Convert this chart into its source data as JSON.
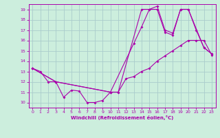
{
  "background_color": "#cceedd",
  "grid_color": "#aacccc",
  "line_color": "#aa00aa",
  "xlim": [
    -0.5,
    23.5
  ],
  "ylim": [
    9.5,
    19.5
  ],
  "xlabel": "Windchill (Refroidissement éolien,°C)",
  "xticks": [
    0,
    1,
    2,
    3,
    4,
    5,
    6,
    7,
    8,
    9,
    10,
    11,
    12,
    13,
    14,
    15,
    16,
    17,
    18,
    19,
    20,
    21,
    22,
    23
  ],
  "yticks": [
    10,
    11,
    12,
    13,
    14,
    15,
    16,
    17,
    18,
    19
  ],
  "line1_x": [
    0,
    1,
    2,
    3,
    10,
    11,
    14,
    15,
    16,
    17,
    18,
    19,
    20,
    22,
    23
  ],
  "line1_y": [
    13.3,
    13.0,
    12.0,
    12.0,
    11.0,
    11.0,
    19.0,
    19.0,
    19.3,
    17.0,
    16.7,
    19.0,
    19.0,
    15.3,
    14.7
  ],
  "line2_x": [
    0,
    3,
    4,
    5,
    6,
    7,
    8,
    9,
    10,
    11,
    12,
    13,
    14,
    15,
    16,
    17,
    18,
    19,
    20,
    21,
    22,
    23
  ],
  "line2_y": [
    13.3,
    12.0,
    10.5,
    11.2,
    11.1,
    10.0,
    10.0,
    10.2,
    11.0,
    11.0,
    12.3,
    12.5,
    13.0,
    13.3,
    14.0,
    14.5,
    15.0,
    15.5,
    16.0,
    16.0,
    16.0,
    14.6
  ],
  "line3_x": [
    0,
    3,
    10,
    13,
    14,
    15,
    16,
    17,
    18,
    19,
    20,
    21,
    22,
    23
  ],
  "line3_y": [
    13.3,
    12.0,
    11.0,
    15.7,
    17.3,
    19.0,
    19.0,
    16.8,
    16.5,
    19.0,
    19.0,
    17.0,
    15.3,
    14.7
  ]
}
